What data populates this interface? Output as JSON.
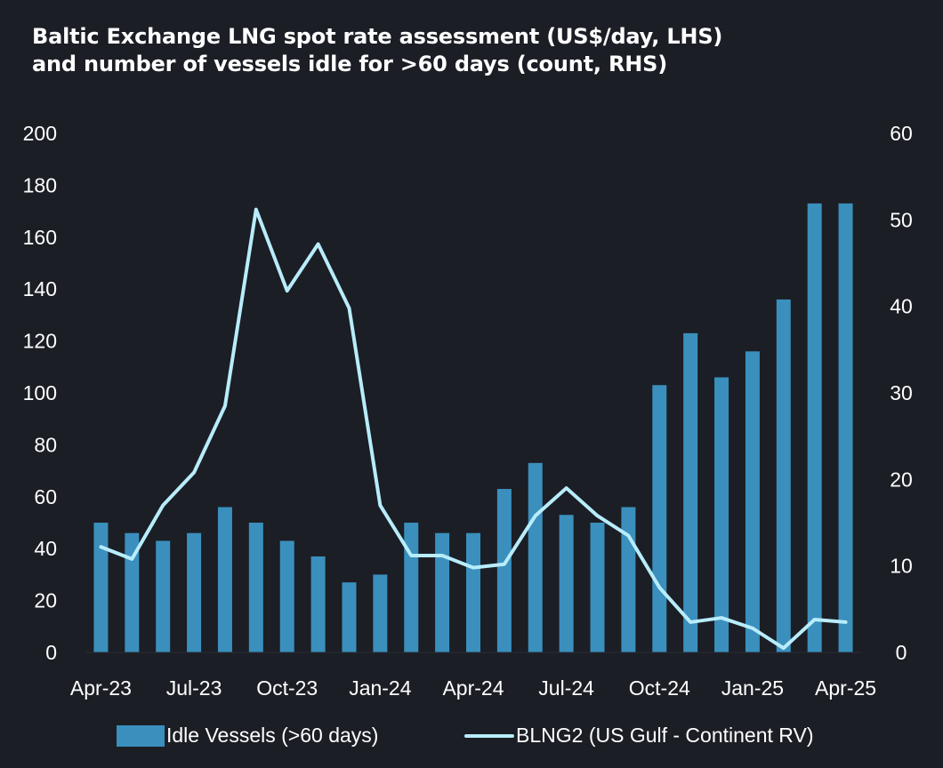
{
  "title": {
    "line1": "Baltic Exchange LNG spot rate assessment (US$/day, LHS)",
    "line2": "and number of vessels idle for >60 days (count, RHS)"
  },
  "colors": {
    "background": "#1b1e25",
    "bars": "#3a8fbd",
    "line": "#b8ecfb",
    "text": "#ffffff"
  },
  "chart_data": {
    "type": "bar+line",
    "title": "Baltic Exchange LNG spot rate assessment (US$/day, LHS) and number of vessels idle for >60 days (count, RHS)",
    "x_ticks": [
      "Apr-23",
      "Jul-23",
      "Oct-23",
      "Jan-24",
      "Apr-24",
      "Jul-24",
      "Oct-24",
      "Jan-25",
      "Apr-25"
    ],
    "left_axis": {
      "ylim": [
        0,
        200
      ],
      "ticks": [
        "200",
        "180",
        "160",
        "140",
        "120",
        "100",
        "80",
        "60",
        "40",
        "20",
        "0"
      ]
    },
    "right_axis": {
      "ylim": [
        0,
        60
      ],
      "ticks": [
        "60",
        "50",
        "40",
        "30",
        "20",
        "10",
        "0"
      ]
    },
    "grid": false,
    "legend_position": "bottom",
    "series": [
      {
        "name": "Idle Vessels (>60 days)",
        "type": "bar",
        "axis": "left",
        "values": [
          50,
          46,
          43,
          46,
          56,
          50,
          43,
          37,
          27,
          30,
          50,
          46,
          46,
          63,
          73,
          53,
          50,
          56,
          103,
          123,
          106,
          116,
          136,
          173,
          173
        ]
      },
      {
        "name": "BLNG2 (US Gulf - Continent RV)",
        "type": "line",
        "axis": "right",
        "values": [
          12.2,
          10.8,
          17.0,
          20.8,
          28.5,
          51.2,
          41.8,
          47.2,
          39.8,
          17.0,
          11.2,
          11.2,
          9.8,
          10.2,
          15.8,
          19.0,
          15.8,
          13.5,
          7.5,
          3.5,
          4.0,
          2.8,
          0.5,
          3.8,
          3.5
        ]
      }
    ]
  },
  "legend": {
    "bars_label": "Idle Vessels (>60 days)",
    "line_label": "BLNG2 (US Gulf - Continent RV)"
  }
}
